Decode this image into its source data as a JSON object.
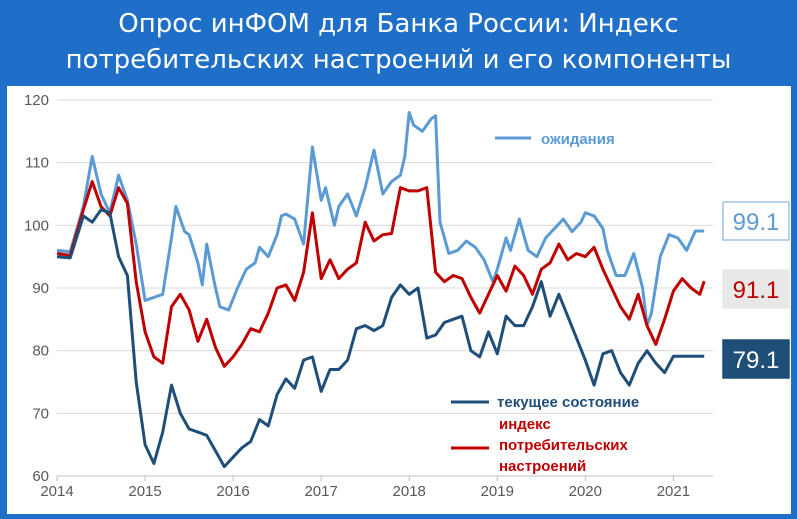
{
  "header": {
    "title_line1": "Опрос инФОМ для Банка России: Индекс",
    "title_line2": "потребительских настроений и его компоненты"
  },
  "colors": {
    "background": "#1f6fc8",
    "expectations": "#5b9bd5",
    "index": "#c00000",
    "current": "#1f4e79"
  },
  "chart_data": {
    "type": "line",
    "title": "Опрос инФОМ для Банка России: Индекс потребительских настроений и его компоненты",
    "xlabel": "",
    "ylabel": "",
    "ylim": [
      60,
      120
    ],
    "xlim": [
      2014.0,
      2021.45
    ],
    "yticks": [
      60,
      70,
      80,
      90,
      100,
      110,
      120
    ],
    "xticks": [
      2014,
      2015,
      2016,
      2017,
      2018,
      2019,
      2020,
      2021
    ],
    "grid": "horizontal",
    "legend_position": "right",
    "series": [
      {
        "name": "ожидания",
        "color": "#5b9bd5",
        "end_label": "99.1",
        "x": [
          2014.0,
          2014.15,
          2014.3,
          2014.4,
          2014.5,
          2014.6,
          2014.7,
          2014.8,
          2014.9,
          2015.0,
          2015.1,
          2015.2,
          2015.3,
          2015.35,
          2015.45,
          2015.5,
          2015.6,
          2015.65,
          2015.7,
          2015.8,
          2015.85,
          2015.95,
          2016.05,
          2016.15,
          2016.25,
          2016.3,
          2016.4,
          2016.5,
          2016.55,
          2016.6,
          2016.7,
          2016.8,
          2016.9,
          2017.0,
          2017.05,
          2017.15,
          2017.2,
          2017.3,
          2017.4,
          2017.5,
          2017.6,
          2017.7,
          2017.8,
          2017.9,
          2017.95,
          2018.0,
          2018.05,
          2018.15,
          2018.25,
          2018.3,
          2018.35,
          2018.45,
          2018.55,
          2018.65,
          2018.75,
          2018.85,
          2018.95,
          2019.0,
          2019.1,
          2019.15,
          2019.25,
          2019.35,
          2019.45,
          2019.55,
          2019.65,
          2019.75,
          2019.85,
          2019.95,
          2020.0,
          2020.1,
          2020.2,
          2020.25,
          2020.35,
          2020.45,
          2020.55,
          2020.65,
          2020.7,
          2020.75,
          2020.85,
          2020.95,
          2021.05,
          2021.15,
          2021.25,
          2021.35
        ],
        "values": [
          96,
          95.8,
          103,
          111,
          105,
          102,
          108,
          104,
          97,
          88,
          88.5,
          89,
          98,
          103,
          99,
          98.5,
          94,
          90.5,
          97,
          90,
          87,
          86.5,
          90,
          93,
          94,
          96.5,
          95,
          98.5,
          101.5,
          101.8,
          101,
          97,
          112.5,
          104,
          106,
          100,
          103,
          105,
          101.5,
          106,
          112,
          105,
          107,
          108,
          111,
          118,
          116,
          115,
          117,
          117.5,
          100.5,
          95.5,
          96,
          97.5,
          96.5,
          94.5,
          91,
          93,
          98,
          96,
          101,
          96,
          95,
          98,
          99.5,
          101,
          99,
          100.5,
          102,
          101.5,
          99.5,
          96,
          92,
          92,
          95.5,
          90,
          84,
          86,
          95,
          98.5,
          98,
          96,
          99.1,
          99.1
        ]
      },
      {
        "name": "индекс потребительских настроений",
        "color": "#c00000",
        "end_label": "91.1",
        "x": [
          2014.0,
          2014.15,
          2014.3,
          2014.4,
          2014.5,
          2014.6,
          2014.7,
          2014.8,
          2014.9,
          2015.0,
          2015.1,
          2015.2,
          2015.3,
          2015.4,
          2015.5,
          2015.6,
          2015.7,
          2015.8,
          2015.9,
          2016.0,
          2016.1,
          2016.2,
          2016.3,
          2016.4,
          2016.5,
          2016.6,
          2016.7,
          2016.8,
          2016.9,
          2017.0,
          2017.1,
          2017.2,
          2017.3,
          2017.4,
          2017.5,
          2017.6,
          2017.7,
          2017.8,
          2017.9,
          2018.0,
          2018.1,
          2018.2,
          2018.3,
          2018.4,
          2018.5,
          2018.6,
          2018.7,
          2018.8,
          2018.9,
          2019.0,
          2019.1,
          2019.2,
          2019.3,
          2019.4,
          2019.5,
          2019.6,
          2019.7,
          2019.8,
          2019.9,
          2020.0,
          2020.1,
          2020.2,
          2020.3,
          2020.4,
          2020.5,
          2020.6,
          2020.7,
          2020.8,
          2020.9,
          2021.0,
          2021.1,
          2021.2,
          2021.3,
          2021.35
        ],
        "values": [
          95.5,
          95.2,
          102.5,
          107,
          103,
          101.5,
          106,
          103.5,
          91,
          83,
          79,
          78,
          87,
          89,
          86.5,
          81.5,
          85,
          80.5,
          77.5,
          79,
          81,
          83.5,
          83,
          86,
          90,
          90.5,
          88,
          92.5,
          102,
          91.5,
          94.5,
          91.5,
          93,
          94,
          100.5,
          97.5,
          98.5,
          98.7,
          106,
          105.5,
          105.5,
          106,
          92.5,
          91,
          92,
          91.5,
          88.5,
          86,
          89,
          92,
          89.5,
          93.5,
          92,
          89,
          93,
          94,
          97,
          94.5,
          95.5,
          95,
          96.5,
          93,
          90,
          87,
          85,
          89,
          84,
          81,
          85,
          89.5,
          91.5,
          90,
          89,
          91.1
        ]
      },
      {
        "name": "текущее состояние",
        "color": "#1f4e79",
        "end_label": "79.1",
        "x": [
          2014.0,
          2014.15,
          2014.3,
          2014.4,
          2014.5,
          2014.6,
          2014.7,
          2014.8,
          2014.9,
          2015.0,
          2015.1,
          2015.2,
          2015.3,
          2015.4,
          2015.5,
          2015.6,
          2015.7,
          2015.8,
          2015.9,
          2016.0,
          2016.1,
          2016.2,
          2016.3,
          2016.4,
          2016.5,
          2016.6,
          2016.7,
          2016.8,
          2016.9,
          2017.0,
          2017.1,
          2017.2,
          2017.3,
          2017.4,
          2017.5,
          2017.6,
          2017.7,
          2017.8,
          2017.9,
          2018.0,
          2018.1,
          2018.2,
          2018.3,
          2018.4,
          2018.5,
          2018.6,
          2018.7,
          2018.8,
          2018.9,
          2019.0,
          2019.1,
          2019.2,
          2019.3,
          2019.4,
          2019.5,
          2019.6,
          2019.7,
          2019.8,
          2019.9,
          2020.0,
          2020.1,
          2020.2,
          2020.3,
          2020.4,
          2020.5,
          2020.6,
          2020.7,
          2020.8,
          2020.9,
          2021.0,
          2021.1,
          2021.2,
          2021.3,
          2021.35
        ],
        "values": [
          95,
          94.8,
          101.5,
          100.5,
          102.5,
          102,
          95,
          92,
          75,
          65,
          62,
          67,
          74.5,
          70,
          67.5,
          67,
          66.5,
          64,
          61.5,
          63,
          64.5,
          65.5,
          69,
          68,
          73,
          75.5,
          74,
          78.5,
          79,
          73.5,
          77,
          77,
          78.5,
          83.5,
          84,
          83.2,
          84,
          88.5,
          90.5,
          89,
          90,
          82,
          82.5,
          84.5,
          85,
          85.5,
          80,
          79,
          83,
          79.5,
          85.5,
          84,
          84,
          87,
          91,
          85.5,
          89,
          85.5,
          82,
          78.5,
          74.5,
          79.5,
          80,
          76.5,
          74.5,
          78,
          80,
          78,
          76.5,
          79.1,
          79.1,
          79.1,
          79.1,
          79.1
        ]
      }
    ],
    "legend": [
      {
        "label": "ожидания",
        "color": "#5b9bd5"
      },
      {
        "label": "текущее состояние",
        "color": "#1f4e79"
      },
      {
        "label_lines": [
          "индекс",
          "потребительских",
          "настроений"
        ],
        "color": "#c00000"
      }
    ]
  }
}
